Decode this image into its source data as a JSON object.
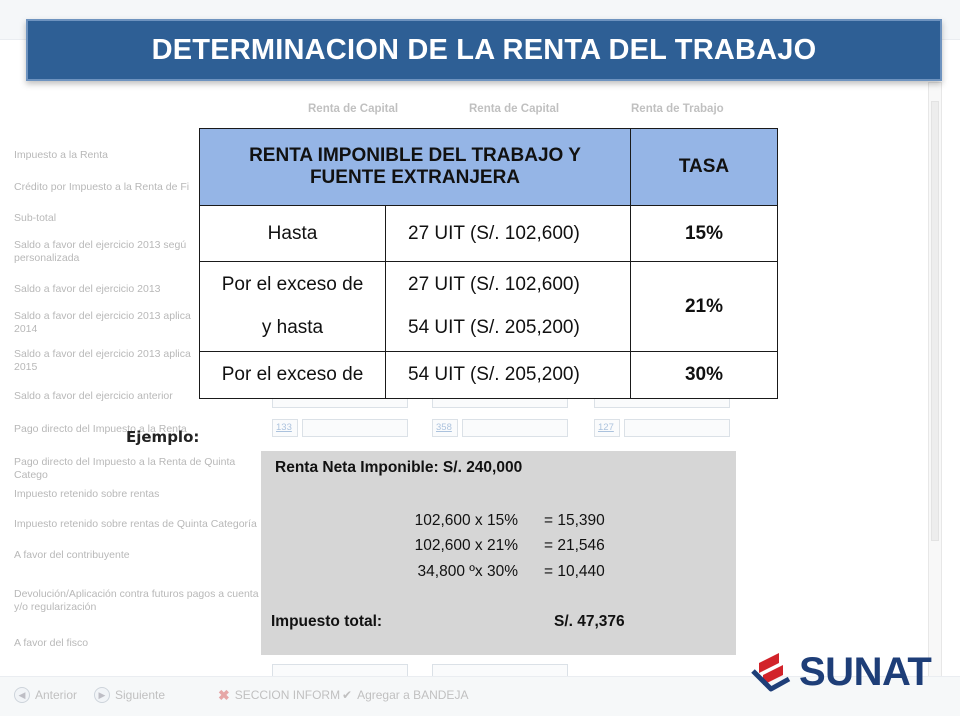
{
  "title": "DETERMINACION DE LA RENTA DEL TRABAJO",
  "background_form": {
    "columns": [
      "Renta de Capital",
      "Renta de Capital",
      "Renta de Trabajo"
    ],
    "rows": [
      "Impuesto a la Renta",
      "Crédito por Impuesto a la Renta de Fi",
      "Sub-total",
      "Saldo a favor del ejercicio 2013 segú",
      "personalizada",
      "Saldo a favor del ejercicio 2013",
      "Saldo a favor del ejercicio 2013 aplica",
      "2014",
      "Saldo a favor del ejercicio 2013 aplica",
      "2015",
      "Saldo a favor del ejercicio anterior",
      "Pago directo del Impuesto a la Renta",
      "Pago directo del Impuesto a la Renta de Quinta Catego",
      "Impuesto retenido sobre rentas",
      "Impuesto retenido sobre rentas de Quinta Categoría",
      "A favor del contribuyente",
      "Devolución/Aplicación contra futuros pagos a cuenta",
      "y/o regularización",
      "A favor del fisco"
    ],
    "codes": [
      "133",
      "358",
      "127"
    ],
    "buttons": {
      "anterior": "Anterior",
      "siguiente": "Siguiente",
      "seccion": "SECCION INFORM",
      "bandeja": "Agregar a BANDEJA"
    }
  },
  "rate_table": {
    "header_base": "RENTA IMPONIBLE DEL TRABAJO Y FUENTE EXTRANJERA",
    "header_rate": "TASA",
    "rows": [
      {
        "label": "Hasta",
        "uit": "27 UIT  (S/. 102,600)",
        "rate": "15%"
      },
      {
        "label_1": "Por el exceso de",
        "uit_1": "27 UIT  (S/. 102,600)",
        "label_2": "y hasta",
        "uit_2": "54 UIT  (S/. 205,200)",
        "rate": "21%"
      },
      {
        "label": "Por el exceso de",
        "uit": "54 UIT  (S/. 205,200)",
        "rate": "30%"
      }
    ]
  },
  "example": {
    "label": "Ejemplo:",
    "renta_neta": "Renta Neta Imponible: S/. 240,000",
    "lines": [
      {
        "calc": "102,600 x 15%",
        "result": "= 15,390"
      },
      {
        "calc": "102,600 x 21%",
        "result": "= 21,546"
      },
      {
        "calc": "34,800 ºx 30%",
        "result": "= 10,440"
      }
    ],
    "total_label": "Impuesto total:",
    "total_value": "S/.   47,376"
  },
  "logo": {
    "text": "SUNAT",
    "colors": {
      "red": "#d2232a",
      "blue": "#1e3e78"
    }
  },
  "colors": {
    "banner": "#2e5f95",
    "table_header": "#95b5e6",
    "example_box": "#d6d6d6"
  }
}
